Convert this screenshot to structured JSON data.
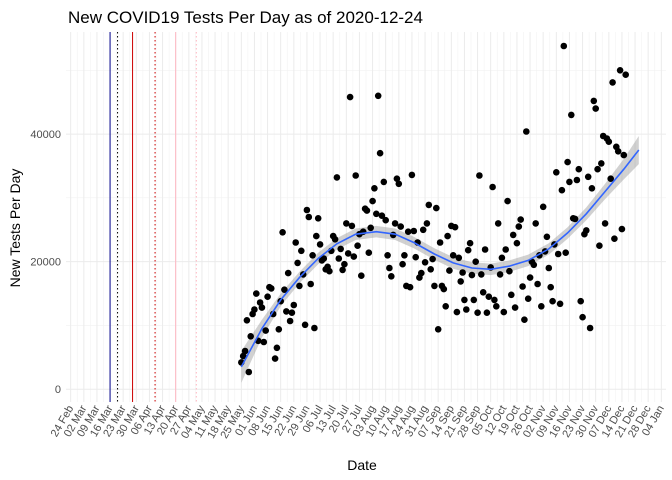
{
  "chart_data": {
    "type": "scatter",
    "title": "New COVID19 Tests Per Day as of 2020-12-24",
    "xlabel": "Date",
    "ylabel": "New Tests Per Day",
    "x_ticks": [
      "24 Feb",
      "02 Mar",
      "09 Mar",
      "16 Mar",
      "23 Mar",
      "30 Mar",
      "06 Apr",
      "13 Apr",
      "20 Apr",
      "27 Apr",
      "04 May",
      "11 May",
      "18 May",
      "25 May",
      "01 Jun",
      "08 Jun",
      "15 Jun",
      "22 Jun",
      "29 Jun",
      "06 Jul",
      "13 Jul",
      "20 Jul",
      "27 Jul",
      "03 Aug",
      "10 Aug",
      "17 Aug",
      "24 Aug",
      "31 Aug",
      "07 Sep",
      "14 Sep",
      "21 Sep",
      "28 Sep",
      "05 Oct",
      "12 Oct",
      "19 Oct",
      "26 Oct",
      "02 Nov",
      "09 Nov",
      "16 Nov",
      "23 Nov",
      "30 Nov",
      "07 Dec",
      "14 Dec",
      "21 Dec",
      "28 Dec",
      "04 Jan"
    ],
    "y_ticks": [
      "0",
      "20000",
      "40000"
    ],
    "ylim": [
      -2000,
      56000
    ],
    "grid": true,
    "vlines": [
      {
        "date": "2020-03-16",
        "color": "#00008b",
        "style": "solid"
      },
      {
        "date": "2020-03-20",
        "color": "#000000",
        "style": "dotted"
      },
      {
        "date": "2020-03-28",
        "color": "#cc0000",
        "style": "solid"
      },
      {
        "date": "2020-04-09",
        "color": "#cc0000",
        "style": "dotted"
      },
      {
        "date": "2020-04-20",
        "color": "#ffb6c1",
        "style": "solid"
      },
      {
        "date": "2020-05-01",
        "color": "#ffb6c1",
        "style": "dotted"
      }
    ],
    "smooth": {
      "color": "#3366ff",
      "ribbon_color": "#999999",
      "x": [
        "2020-05-25",
        "2020-06-05",
        "2020-06-15",
        "2020-06-25",
        "2020-07-05",
        "2020-07-15",
        "2020-07-25",
        "2020-08-05",
        "2020-08-15",
        "2020-08-25",
        "2020-09-05",
        "2020-09-15",
        "2020-09-25",
        "2020-10-05",
        "2020-10-15",
        "2020-10-25",
        "2020-11-05",
        "2020-11-15",
        "2020-11-25",
        "2020-12-05",
        "2020-12-15",
        "2020-12-23"
      ],
      "y": [
        3500,
        9500,
        14000,
        17500,
        20500,
        22800,
        24300,
        24700,
        24300,
        23000,
        21200,
        19800,
        19000,
        18800,
        19300,
        20200,
        22000,
        24500,
        27500,
        31000,
        34500,
        37500
      ],
      "se": [
        2500,
        1400,
        1000,
        900,
        900,
        900,
        900,
        900,
        900,
        900,
        900,
        900,
        900,
        900,
        900,
        900,
        900,
        900,
        1000,
        1200,
        1600,
        2200
      ]
    },
    "points": [
      {
        "x": "2020-05-25",
        "y": 4200
      },
      {
        "x": "2020-05-26",
        "y": 5200
      },
      {
        "x": "2020-05-27",
        "y": 6000
      },
      {
        "x": "2020-05-28",
        "y": 10800
      },
      {
        "x": "2020-05-29",
        "y": 2700
      },
      {
        "x": "2020-05-30",
        "y": 8300
      },
      {
        "x": "2020-05-31",
        "y": 11800
      },
      {
        "x": "2020-06-01",
        "y": 12500
      },
      {
        "x": "2020-06-02",
        "y": 15000
      },
      {
        "x": "2020-06-03",
        "y": 7600
      },
      {
        "x": "2020-06-04",
        "y": 13600
      },
      {
        "x": "2020-06-05",
        "y": 12800
      },
      {
        "x": "2020-06-06",
        "y": 7400
      },
      {
        "x": "2020-06-07",
        "y": 9200
      },
      {
        "x": "2020-06-08",
        "y": 14500
      },
      {
        "x": "2020-06-09",
        "y": 16000
      },
      {
        "x": "2020-06-10",
        "y": 15800
      },
      {
        "x": "2020-06-11",
        "y": 11800
      },
      {
        "x": "2020-06-12",
        "y": 4800
      },
      {
        "x": "2020-06-13",
        "y": 6500
      },
      {
        "x": "2020-06-14",
        "y": 9400
      },
      {
        "x": "2020-06-15",
        "y": 13800
      },
      {
        "x": "2020-06-16",
        "y": 24600
      },
      {
        "x": "2020-06-17",
        "y": 15600
      },
      {
        "x": "2020-06-18",
        "y": 12200
      },
      {
        "x": "2020-06-19",
        "y": 18200
      },
      {
        "x": "2020-06-20",
        "y": 10700
      },
      {
        "x": "2020-06-21",
        "y": 12000
      },
      {
        "x": "2020-06-22",
        "y": 13200
      },
      {
        "x": "2020-06-23",
        "y": 23000
      },
      {
        "x": "2020-06-24",
        "y": 19800
      },
      {
        "x": "2020-06-25",
        "y": 16200
      },
      {
        "x": "2020-06-26",
        "y": 21700
      },
      {
        "x": "2020-06-27",
        "y": 18000
      },
      {
        "x": "2020-06-28",
        "y": 10100
      },
      {
        "x": "2020-06-29",
        "y": 28100
      },
      {
        "x": "2020-06-30",
        "y": 27000
      },
      {
        "x": "2020-07-01",
        "y": 16500
      },
      {
        "x": "2020-07-02",
        "y": 21000
      },
      {
        "x": "2020-07-03",
        "y": 9600
      },
      {
        "x": "2020-07-04",
        "y": 24000
      },
      {
        "x": "2020-07-05",
        "y": 26800
      },
      {
        "x": "2020-07-06",
        "y": 22700
      },
      {
        "x": "2020-07-07",
        "y": 20200
      },
      {
        "x": "2020-07-08",
        "y": 20500
      },
      {
        "x": "2020-07-09",
        "y": 18800
      },
      {
        "x": "2020-07-10",
        "y": 19200
      },
      {
        "x": "2020-07-11",
        "y": 18500
      },
      {
        "x": "2020-07-12",
        "y": 21700
      },
      {
        "x": "2020-07-13",
        "y": 24000
      },
      {
        "x": "2020-07-14",
        "y": 23500
      },
      {
        "x": "2020-07-15",
        "y": 33200
      },
      {
        "x": "2020-07-16",
        "y": 20500
      },
      {
        "x": "2020-07-17",
        "y": 22000
      },
      {
        "x": "2020-07-18",
        "y": 18700
      },
      {
        "x": "2020-07-19",
        "y": 19600
      },
      {
        "x": "2020-07-20",
        "y": 26000
      },
      {
        "x": "2020-07-21",
        "y": 21300
      },
      {
        "x": "2020-07-22",
        "y": 45800
      },
      {
        "x": "2020-07-23",
        "y": 25600
      },
      {
        "x": "2020-07-24",
        "y": 20800
      },
      {
        "x": "2020-07-25",
        "y": 33500
      },
      {
        "x": "2020-07-26",
        "y": 22500
      },
      {
        "x": "2020-07-27",
        "y": 24300
      },
      {
        "x": "2020-07-28",
        "y": 17800
      },
      {
        "x": "2020-07-29",
        "y": 24700
      },
      {
        "x": "2020-07-30",
        "y": 28300
      },
      {
        "x": "2020-07-31",
        "y": 28000
      },
      {
        "x": "2020-08-01",
        "y": 21400
      },
      {
        "x": "2020-08-02",
        "y": 25300
      },
      {
        "x": "2020-08-03",
        "y": 29500
      },
      {
        "x": "2020-08-04",
        "y": 31500
      },
      {
        "x": "2020-08-05",
        "y": 27500
      },
      {
        "x": "2020-08-06",
        "y": 46000
      },
      {
        "x": "2020-08-07",
        "y": 37000
      },
      {
        "x": "2020-08-08",
        "y": 27200
      },
      {
        "x": "2020-08-09",
        "y": 32500
      },
      {
        "x": "2020-08-10",
        "y": 26500
      },
      {
        "x": "2020-08-11",
        "y": 21000
      },
      {
        "x": "2020-08-12",
        "y": 19000
      },
      {
        "x": "2020-08-13",
        "y": 17700
      },
      {
        "x": "2020-08-14",
        "y": 24200
      },
      {
        "x": "2020-08-15",
        "y": 26000
      },
      {
        "x": "2020-08-16",
        "y": 33000
      },
      {
        "x": "2020-08-17",
        "y": 32200
      },
      {
        "x": "2020-08-18",
        "y": 25500
      },
      {
        "x": "2020-08-19",
        "y": 19600
      },
      {
        "x": "2020-08-20",
        "y": 21000
      },
      {
        "x": "2020-08-21",
        "y": 16200
      },
      {
        "x": "2020-08-22",
        "y": 24700
      },
      {
        "x": "2020-08-23",
        "y": 16000
      },
      {
        "x": "2020-08-24",
        "y": 33600
      },
      {
        "x": "2020-08-25",
        "y": 24800
      },
      {
        "x": "2020-08-26",
        "y": 20700
      },
      {
        "x": "2020-08-27",
        "y": 23000
      },
      {
        "x": "2020-08-28",
        "y": 17500
      },
      {
        "x": "2020-08-29",
        "y": 18200
      },
      {
        "x": "2020-08-30",
        "y": 25000
      },
      {
        "x": "2020-08-31",
        "y": 19900
      },
      {
        "x": "2020-09-01",
        "y": 26000
      },
      {
        "x": "2020-09-02",
        "y": 28900
      },
      {
        "x": "2020-09-03",
        "y": 18800
      },
      {
        "x": "2020-09-04",
        "y": 20400
      },
      {
        "x": "2020-09-05",
        "y": 16200
      },
      {
        "x": "2020-09-06",
        "y": 28400
      },
      {
        "x": "2020-09-07",
        "y": 9400
      },
      {
        "x": "2020-09-08",
        "y": 23000
      },
      {
        "x": "2020-09-09",
        "y": 16200
      },
      {
        "x": "2020-09-10",
        "y": 15700
      },
      {
        "x": "2020-09-11",
        "y": 13000
      },
      {
        "x": "2020-09-12",
        "y": 24000
      },
      {
        "x": "2020-09-13",
        "y": 18600
      },
      {
        "x": "2020-09-14",
        "y": 25600
      },
      {
        "x": "2020-09-15",
        "y": 21000
      },
      {
        "x": "2020-09-16",
        "y": 25400
      },
      {
        "x": "2020-09-17",
        "y": 12100
      },
      {
        "x": "2020-09-18",
        "y": 20600
      },
      {
        "x": "2020-09-19",
        "y": 16900
      },
      {
        "x": "2020-09-20",
        "y": 18300
      },
      {
        "x": "2020-09-21",
        "y": 14000
      },
      {
        "x": "2020-09-22",
        "y": 12500
      },
      {
        "x": "2020-09-23",
        "y": 21800
      },
      {
        "x": "2020-09-24",
        "y": 22900
      },
      {
        "x": "2020-09-25",
        "y": 17900
      },
      {
        "x": "2020-09-26",
        "y": 14000
      },
      {
        "x": "2020-09-27",
        "y": 20000
      },
      {
        "x": "2020-09-28",
        "y": 12000
      },
      {
        "x": "2020-09-29",
        "y": 33500
      },
      {
        "x": "2020-09-30",
        "y": 18000
      },
      {
        "x": "2020-10-01",
        "y": 15200
      },
      {
        "x": "2020-10-02",
        "y": 21900
      },
      {
        "x": "2020-10-03",
        "y": 12000
      },
      {
        "x": "2020-10-04",
        "y": 14500
      },
      {
        "x": "2020-10-05",
        "y": 19100
      },
      {
        "x": "2020-10-06",
        "y": 31700
      },
      {
        "x": "2020-10-07",
        "y": 14000
      },
      {
        "x": "2020-10-08",
        "y": 13000
      },
      {
        "x": "2020-10-09",
        "y": 26000
      },
      {
        "x": "2020-10-10",
        "y": 18000
      },
      {
        "x": "2020-10-11",
        "y": 20600
      },
      {
        "x": "2020-10-12",
        "y": 12100
      },
      {
        "x": "2020-10-13",
        "y": 21900
      },
      {
        "x": "2020-10-14",
        "y": 29500
      },
      {
        "x": "2020-10-15",
        "y": 18500
      },
      {
        "x": "2020-10-16",
        "y": 14800
      },
      {
        "x": "2020-10-17",
        "y": 24200
      },
      {
        "x": "2020-10-18",
        "y": 12800
      },
      {
        "x": "2020-10-19",
        "y": 22900
      },
      {
        "x": "2020-10-20",
        "y": 25500
      },
      {
        "x": "2020-10-21",
        "y": 26600
      },
      {
        "x": "2020-10-22",
        "y": 16100
      },
      {
        "x": "2020-10-23",
        "y": 10900
      },
      {
        "x": "2020-10-24",
        "y": 40400
      },
      {
        "x": "2020-10-25",
        "y": 14200
      },
      {
        "x": "2020-10-26",
        "y": 17500
      },
      {
        "x": "2020-10-27",
        "y": 20000
      },
      {
        "x": "2020-10-28",
        "y": 19500
      },
      {
        "x": "2020-10-29",
        "y": 26000
      },
      {
        "x": "2020-10-30",
        "y": 16500
      },
      {
        "x": "2020-10-31",
        "y": 21000
      },
      {
        "x": "2020-11-01",
        "y": 13000
      },
      {
        "x": "2020-11-02",
        "y": 28600
      },
      {
        "x": "2020-11-03",
        "y": 21600
      },
      {
        "x": "2020-11-04",
        "y": 23900
      },
      {
        "x": "2020-11-05",
        "y": 19000
      },
      {
        "x": "2020-11-06",
        "y": 16000
      },
      {
        "x": "2020-11-07",
        "y": 13800
      },
      {
        "x": "2020-11-08",
        "y": 22700
      },
      {
        "x": "2020-11-09",
        "y": 34000
      },
      {
        "x": "2020-11-10",
        "y": 21200
      },
      {
        "x": "2020-11-11",
        "y": 13400
      },
      {
        "x": "2020-11-12",
        "y": 31200
      },
      {
        "x": "2020-11-13",
        "y": 53800
      },
      {
        "x": "2020-11-14",
        "y": 21400
      },
      {
        "x": "2020-11-15",
        "y": 35600
      },
      {
        "x": "2020-11-16",
        "y": 32500
      },
      {
        "x": "2020-11-17",
        "y": 43000
      },
      {
        "x": "2020-11-18",
        "y": 26800
      },
      {
        "x": "2020-11-19",
        "y": 26700
      },
      {
        "x": "2020-11-20",
        "y": 32800
      },
      {
        "x": "2020-11-21",
        "y": 34500
      },
      {
        "x": "2020-11-22",
        "y": 13800
      },
      {
        "x": "2020-11-23",
        "y": 11300
      },
      {
        "x": "2020-11-24",
        "y": 24300
      },
      {
        "x": "2020-11-25",
        "y": 24900
      },
      {
        "x": "2020-11-26",
        "y": 33300
      },
      {
        "x": "2020-11-27",
        "y": 9600
      },
      {
        "x": "2020-11-28",
        "y": 31500
      },
      {
        "x": "2020-11-29",
        "y": 45200
      },
      {
        "x": "2020-11-30",
        "y": 44000
      },
      {
        "x": "2020-12-01",
        "y": 34500
      },
      {
        "x": "2020-12-02",
        "y": 22500
      },
      {
        "x": "2020-12-03",
        "y": 35400
      },
      {
        "x": "2020-12-04",
        "y": 39700
      },
      {
        "x": "2020-12-05",
        "y": 26000
      },
      {
        "x": "2020-12-06",
        "y": 39300
      },
      {
        "x": "2020-12-07",
        "y": 38800
      },
      {
        "x": "2020-12-08",
        "y": 33000
      },
      {
        "x": "2020-12-09",
        "y": 48100
      },
      {
        "x": "2020-12-10",
        "y": 23600
      },
      {
        "x": "2020-12-11",
        "y": 38000
      },
      {
        "x": "2020-12-12",
        "y": 37300
      },
      {
        "x": "2020-12-13",
        "y": 50000
      },
      {
        "x": "2020-12-14",
        "y": 25100
      },
      {
        "x": "2020-12-15",
        "y": 36700
      },
      {
        "x": "2020-12-16",
        "y": 49300
      }
    ]
  }
}
